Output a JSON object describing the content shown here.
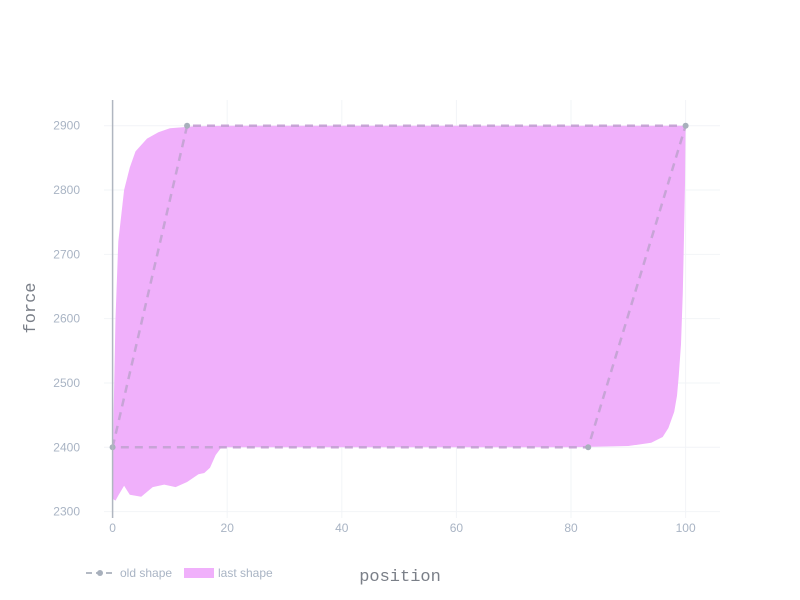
{
  "chart_data": {
    "type": "area",
    "xlabel": "position",
    "ylabel": "force",
    "xlim": [
      -1.5,
      106
    ],
    "ylim": [
      2290,
      2940
    ],
    "x_ticks": [
      0,
      20,
      40,
      60,
      80,
      100
    ],
    "y_ticks": [
      2300,
      2400,
      2500,
      2600,
      2700,
      2800,
      2900
    ],
    "grid": true,
    "legend_position": "bottom-left",
    "series": [
      {
        "name": "old shape",
        "style": "dashed-line-with-markers",
        "color": "#c7a4d6",
        "marker_color": "#a8b0bc",
        "points": [
          [
            0,
            2400
          ],
          [
            13,
            2900
          ],
          [
            100,
            2900
          ],
          [
            83,
            2400
          ],
          [
            0,
            2400
          ]
        ]
      },
      {
        "name": "last shape",
        "style": "filled-area",
        "color": "#f0b0fb",
        "upper": [
          [
            0,
            2320
          ],
          [
            0.2,
            2460
          ],
          [
            0.5,
            2600
          ],
          [
            1,
            2720
          ],
          [
            2,
            2800
          ],
          [
            3,
            2835
          ],
          [
            4,
            2860
          ],
          [
            6,
            2880
          ],
          [
            8,
            2890
          ],
          [
            10,
            2896
          ],
          [
            14,
            2899
          ],
          [
            20,
            2900
          ],
          [
            100,
            2900
          ]
        ],
        "lower": [
          [
            0,
            2320
          ],
          [
            0.5,
            2317
          ],
          [
            1,
            2325
          ],
          [
            2,
            2340
          ],
          [
            3,
            2326
          ],
          [
            5,
            2323
          ],
          [
            7,
            2338
          ],
          [
            9,
            2342
          ],
          [
            11,
            2338
          ],
          [
            13,
            2346
          ],
          [
            15,
            2358
          ],
          [
            16,
            2360
          ],
          [
            17,
            2368
          ],
          [
            18,
            2388
          ],
          [
            19,
            2400
          ],
          [
            60,
            2400
          ],
          [
            80,
            2400
          ],
          [
            90,
            2402
          ],
          [
            94,
            2407
          ],
          [
            96,
            2416
          ],
          [
            97,
            2430
          ],
          [
            98,
            2455
          ],
          [
            98.5,
            2480
          ],
          [
            98.8,
            2510
          ],
          [
            99.2,
            2560
          ],
          [
            99.5,
            2640
          ],
          [
            99.7,
            2720
          ],
          [
            99.9,
            2810
          ],
          [
            100,
            2900
          ]
        ]
      }
    ]
  }
}
